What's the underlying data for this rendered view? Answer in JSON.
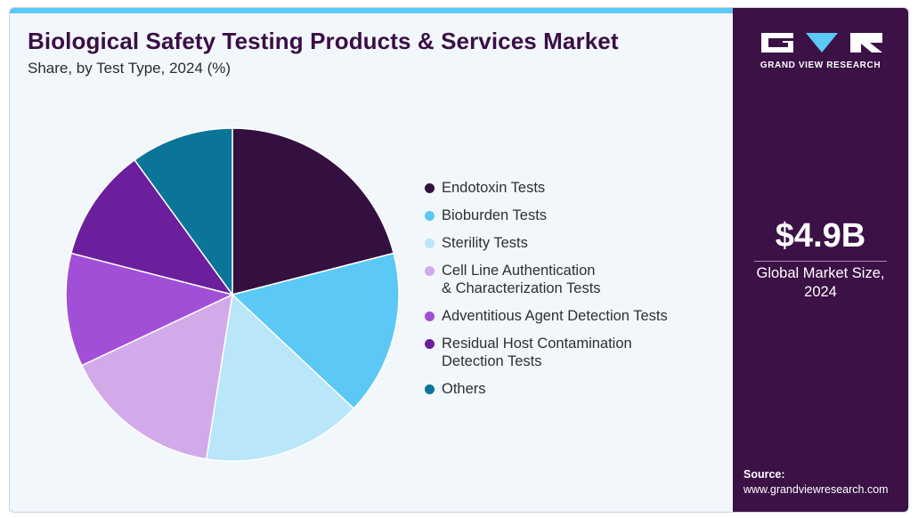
{
  "colors": {
    "accent_bar": "#5bc8f5",
    "title": "#3a0f45",
    "panel": "#3b1146",
    "background": "#f2f7fb"
  },
  "brand": {
    "name": "GRAND VIEW RESEARCH",
    "logo_icon": "gvr-logo-icon"
  },
  "headline": {
    "value": "$4.9B",
    "caption": "Global Market Size,\n2024"
  },
  "source": {
    "label": "Source:",
    "url": "www.grandviewresearch.com"
  },
  "chart_data": {
    "type": "pie",
    "title": "Biological Safety Testing Products & Services Market",
    "subtitle": "Share, by Test Type, 2024 (%)",
    "legend_position": "right",
    "series": [
      {
        "name": "Endotoxin Tests",
        "value": 21,
        "color": "#33103f"
      },
      {
        "name": "Bioburden Tests",
        "value": 16,
        "color": "#5bc8f5"
      },
      {
        "name": "Sterility Tests",
        "value": 15.5,
        "color": "#b9e6f8"
      },
      {
        "name": "Cell Line Authentication\n& Characterization Tests",
        "value": 15.5,
        "color": "#d2aaea"
      },
      {
        "name": "Adventitious Agent Detection Tests",
        "value": 11,
        "color": "#a24fd8"
      },
      {
        "name": "Residual Host Contamination\nDetection Tests",
        "value": 11,
        "color": "#6b1f9c"
      },
      {
        "name": "Others",
        "value": 10,
        "color": "#0b7499"
      }
    ]
  }
}
